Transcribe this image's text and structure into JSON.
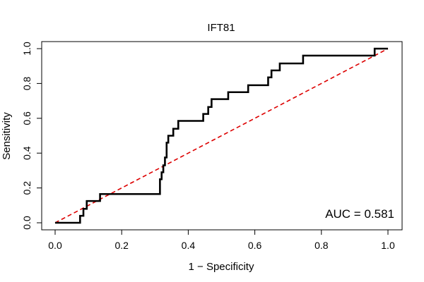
{
  "chart_data": {
    "type": "line",
    "title": "IFT81",
    "xlabel": "1 − Specificity",
    "ylabel": "Sensitivity",
    "xlim": [
      0.0,
      1.0
    ],
    "ylim": [
      0.0,
      1.0
    ],
    "x_ticks": [
      0.0,
      0.2,
      0.4,
      0.6,
      0.8,
      1.0
    ],
    "x_tick_labels": [
      "0.0",
      "0.2",
      "0.4",
      "0.6",
      "0.8",
      "1.0"
    ],
    "y_ticks": [
      0.0,
      0.2,
      0.4,
      0.6,
      0.8,
      1.0
    ],
    "y_tick_labels": [
      "0.0",
      "0.2",
      "0.4",
      "0.6",
      "0.8",
      "1.0"
    ],
    "grid": false,
    "annotation": "AUC = 0.581",
    "series": [
      {
        "name": "ROC curve",
        "color": "#000000",
        "style": "solid",
        "x": [
          0.0,
          0.075,
          0.075,
          0.085,
          0.085,
          0.095,
          0.095,
          0.135,
          0.135,
          0.315,
          0.315,
          0.32,
          0.32,
          0.325,
          0.325,
          0.33,
          0.33,
          0.335,
          0.335,
          0.34,
          0.34,
          0.355,
          0.355,
          0.37,
          0.37,
          0.445,
          0.445,
          0.46,
          0.46,
          0.47,
          0.47,
          0.475,
          0.475,
          0.485,
          0.485,
          0.52,
          0.52,
          0.58,
          0.58,
          0.64,
          0.64,
          0.65,
          0.65,
          0.675,
          0.675,
          0.745,
          0.745,
          0.96,
          0.96,
          0.97,
          0.97,
          1.0
        ],
        "y": [
          0.0,
          0.0,
          0.04,
          0.04,
          0.08,
          0.08,
          0.125,
          0.125,
          0.165,
          0.165,
          0.25,
          0.25,
          0.29,
          0.29,
          0.33,
          0.33,
          0.375,
          0.375,
          0.46,
          0.46,
          0.5,
          0.5,
          0.54,
          0.54,
          0.585,
          0.585,
          0.625,
          0.625,
          0.665,
          0.665,
          0.71,
          0.71,
          0.71,
          0.71,
          0.71,
          0.71,
          0.75,
          0.75,
          0.79,
          0.79,
          0.835,
          0.835,
          0.875,
          0.875,
          0.915,
          0.915,
          0.96,
          0.96,
          1.0,
          1.0,
          1.0,
          1.0
        ]
      },
      {
        "name": "chance diagonal",
        "color": "#dd0000",
        "style": "dashed",
        "x": [
          0.0,
          1.0
        ],
        "y": [
          0.0,
          1.0
        ]
      }
    ]
  }
}
